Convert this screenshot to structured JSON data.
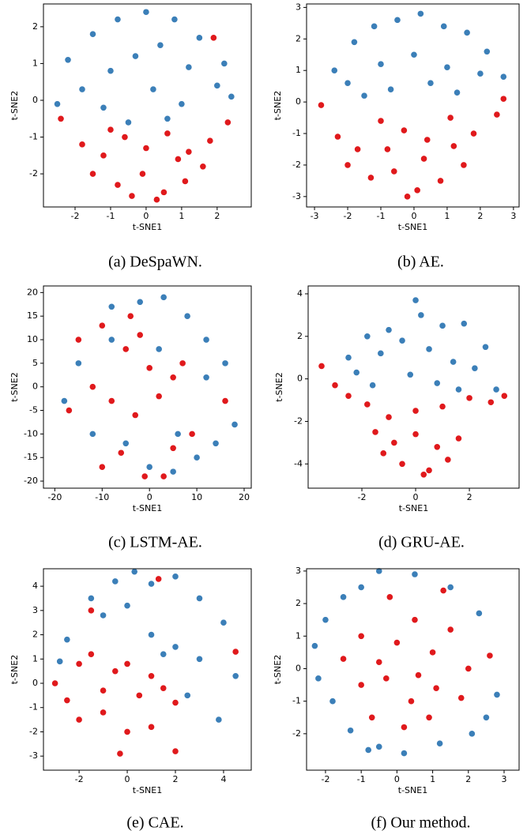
{
  "chart_data": [
    {
      "type": "scatter",
      "caption": "(a) DeSpaWN.",
      "xlabel": "t-SNE1",
      "ylabel": "t-SNE2",
      "xlim": [
        -2.89,
        2.96
      ],
      "ylim": [
        -2.9,
        2.62
      ],
      "xticks": [
        -2,
        -1,
        0,
        1,
        2
      ],
      "yticks": [
        -2,
        -1,
        0,
        1,
        2
      ],
      "series": [
        {
          "color": "#3b7fb8",
          "x": [
            -2.2,
            -1.5,
            -0.8,
            0,
            0.8,
            1.5,
            2.2,
            -1.8,
            -1,
            -0.3,
            0.4,
            1.2,
            2,
            -2.5,
            -1.2,
            0.2,
            1.0,
            2.4,
            -0.5,
            0.6
          ],
          "y": [
            1.1,
            1.8,
            2.2,
            2.4,
            2.2,
            1.7,
            1.0,
            0.3,
            0.8,
            1.2,
            1.5,
            0.9,
            0.4,
            -0.1,
            -0.2,
            0.3,
            -0.1,
            0.1,
            -0.6,
            -0.5
          ]
        },
        {
          "color": "#e0191c",
          "x": [
            -2.4,
            -1.8,
            -1.2,
            -0.6,
            0,
            0.6,
            1.2,
            1.8,
            2.3,
            -1.5,
            -0.8,
            -0.1,
            0.5,
            1.1,
            1.6,
            -0.4,
            0.3,
            0.9,
            -1.0,
            1.9
          ],
          "y": [
            -0.5,
            -1.2,
            -1.5,
            -1.0,
            -1.3,
            -0.9,
            -1.4,
            -1.1,
            -0.6,
            -2.0,
            -2.3,
            -2.0,
            -2.5,
            -2.2,
            -1.8,
            -2.6,
            -2.7,
            -1.6,
            -0.8,
            1.7
          ]
        }
      ]
    },
    {
      "type": "scatter",
      "caption": "(b) AE.",
      "xlabel": "t-SNE1",
      "ylabel": "t-SNE2",
      "xlim": [
        -3.24,
        3.17
      ],
      "ylim": [
        -3.33,
        3.11
      ],
      "xticks": [
        -3,
        -2,
        -1,
        0,
        1,
        2,
        3
      ],
      "yticks": [
        -3,
        -2,
        -1,
        0,
        1,
        2,
        3
      ],
      "series": [
        {
          "color": "#3b7fb8",
          "x": [
            -2.4,
            -1.8,
            -1.2,
            -0.5,
            0.2,
            0.9,
            1.6,
            2.2,
            2.7,
            -2,
            -1,
            0,
            1,
            2,
            -0.7,
            0.5,
            1.3,
            -1.5
          ],
          "y": [
            1.0,
            1.9,
            2.4,
            2.6,
            2.8,
            2.4,
            2.2,
            1.6,
            0.8,
            0.6,
            1.2,
            1.5,
            1.1,
            0.9,
            0.4,
            0.6,
            0.3,
            0.2
          ]
        },
        {
          "color": "#e0191c",
          "x": [
            -2.8,
            -2.3,
            -1.7,
            -1,
            -0.3,
            0.4,
            1.1,
            1.8,
            2.5,
            -2,
            -1.3,
            -0.6,
            0.1,
            0.8,
            1.5,
            -0.8,
            0.3,
            1.2,
            -0.2,
            2.7
          ],
          "y": [
            -0.1,
            -1.1,
            -1.5,
            -0.6,
            -0.9,
            -1.2,
            -0.5,
            -1.0,
            -0.4,
            -2.0,
            -2.4,
            -2.2,
            -2.8,
            -2.5,
            -2.0,
            -1.5,
            -1.8,
            -1.4,
            -3.0,
            0.1
          ]
        }
      ]
    },
    {
      "type": "scatter",
      "caption": "(c) LSTM-AE.",
      "xlabel": "t-SNE1",
      "ylabel": "t-SNE2",
      "xlim": [
        -22.4,
        21.5
      ],
      "ylim": [
        -21.5,
        21.4
      ],
      "xticks": [
        -20,
        -10,
        0,
        10,
        20
      ],
      "yticks": [
        -20,
        -15,
        -10,
        -5,
        0,
        5,
        10,
        15,
        20
      ],
      "series": [
        {
          "color": "#3b7fb8",
          "x": [
            -8,
            -2,
            3,
            8,
            12,
            16,
            18,
            14,
            10,
            6,
            -15,
            -18,
            -12,
            -5,
            0,
            5,
            -8,
            2,
            12
          ],
          "y": [
            17,
            18,
            19,
            15,
            10,
            5,
            -8,
            -12,
            -15,
            -10,
            5,
            -3,
            -10,
            -12,
            -17,
            -18,
            10,
            8,
            2
          ]
        },
        {
          "color": "#e0191c",
          "x": [
            -15,
            -10,
            -5,
            0,
            5,
            -12,
            -8,
            -3,
            2,
            7,
            -17,
            -6,
            -1,
            3,
            -10,
            5,
            -4,
            16,
            -2,
            9
          ],
          "y": [
            10,
            13,
            8,
            4,
            2,
            0,
            -3,
            -6,
            -2,
            5,
            -5,
            -14,
            -19,
            -19,
            -17,
            -13,
            15,
            -3,
            11,
            -10
          ]
        }
      ]
    },
    {
      "type": "scatter",
      "caption": "(d) GRU-AE.",
      "xlabel": "t-SNE1",
      "ylabel": "t-SNE2",
      "xlim": [
        -4.0,
        3.85
      ],
      "ylim": [
        -5.14,
        4.37
      ],
      "xticks": [
        -2,
        0,
        2
      ],
      "yticks": [
        -4,
        -2,
        0,
        2,
        4
      ],
      "series": [
        {
          "color": "#3b7fb8",
          "x": [
            -2.5,
            -1.8,
            -1,
            0,
            1,
            1.8,
            2.6,
            -2.2,
            -1.3,
            -0.5,
            0.5,
            1.4,
            2.2,
            -0.2,
            0.8,
            1.6,
            -1.6,
            0.2,
            3
          ],
          "y": [
            1.0,
            2.0,
            2.3,
            3.7,
            2.5,
            2.6,
            1.5,
            0.3,
            1.2,
            1.8,
            1.4,
            0.8,
            0.5,
            0.2,
            -0.2,
            -0.5,
            -0.3,
            3.0,
            -0.5
          ]
        },
        {
          "color": "#e0191c",
          "x": [
            -3.5,
            -3,
            -2.5,
            -1.8,
            -1,
            0,
            1,
            2,
            2.8,
            3.3,
            -1.5,
            -0.8,
            0,
            0.8,
            1.6,
            -0.5,
            0.3,
            1.2,
            -1.2,
            0.5
          ],
          "y": [
            0.6,
            -0.3,
            -0.8,
            -1.2,
            -1.8,
            -1.5,
            -1.3,
            -0.9,
            -1.1,
            -0.8,
            -2.5,
            -3,
            -2.6,
            -3.2,
            -2.8,
            -4,
            -4.5,
            -3.8,
            -3.5,
            -4.3
          ]
        }
      ]
    },
    {
      "type": "scatter",
      "caption": "(e) CAE.",
      "xlabel": "t-SNE1",
      "ylabel": "t-SNE2",
      "xlim": [
        -3.48,
        5.15
      ],
      "ylim": [
        -3.58,
        4.72
      ],
      "xticks": [
        -2,
        0,
        2,
        4
      ],
      "yticks": [
        -3,
        -2,
        -1,
        0,
        1,
        2,
        3,
        4
      ],
      "series": [
        {
          "color": "#3b7fb8",
          "x": [
            -2.5,
            -1.5,
            -0.5,
            0.3,
            1,
            2,
            3,
            4,
            -1,
            0,
            1,
            2,
            3,
            4.5,
            2.5,
            3.8,
            1.5,
            -2.8
          ],
          "y": [
            1.8,
            3.5,
            4.2,
            4.6,
            4.1,
            4.4,
            3.5,
            2.5,
            2.8,
            3.2,
            2,
            1.5,
            1,
            0.3,
            -0.5,
            -1.5,
            1.2,
            0.9
          ]
        },
        {
          "color": "#e0191c",
          "x": [
            -3,
            -2.5,
            -2,
            -1.5,
            -1,
            -0.5,
            0,
            0.5,
            1,
            1.5,
            2,
            -2,
            -1,
            0,
            1,
            2,
            -1.5,
            1.3,
            4.5,
            -0.3
          ],
          "y": [
            0,
            -0.7,
            0.8,
            1.2,
            -0.3,
            0.5,
            0.8,
            -0.5,
            0.3,
            -0.2,
            -0.8,
            -1.5,
            -1.2,
            -2,
            -1.8,
            -2.8,
            3,
            4.3,
            1.3,
            -2.9
          ]
        }
      ]
    },
    {
      "type": "scatter",
      "caption": "(f) Our method.",
      "xlabel": "t-SNE1",
      "ylabel": "t-SNE2",
      "xlim": [
        -2.53,
        3.42
      ],
      "ylim": [
        -3.12,
        3.07
      ],
      "xticks": [
        -2,
        -1,
        0,
        1,
        2,
        3
      ],
      "yticks": [
        -2,
        -1,
        0,
        1,
        2,
        3
      ],
      "series": [
        {
          "color": "#3b7fb8",
          "x": [
            -2.3,
            -2,
            -1.5,
            -1,
            -0.5,
            0.5,
            1.5,
            2.3,
            2.8,
            2.5,
            -2.2,
            -1.8,
            -1.3,
            -0.5,
            0.2,
            2.1,
            1.2,
            -0.8
          ],
          "y": [
            0.7,
            1.5,
            2.2,
            2.5,
            3.0,
            2.9,
            2.5,
            1.7,
            -0.8,
            -1.5,
            -0.3,
            -1.0,
            -1.9,
            -2.4,
            -2.6,
            -2.0,
            -2.3,
            -2.5
          ]
        },
        {
          "color": "#e0191c",
          "x": [
            -1.5,
            -1,
            -0.5,
            0,
            0.5,
            1,
            1.5,
            2,
            -1,
            -0.3,
            0.4,
            1.1,
            1.8,
            -0.7,
            0.2,
            0.9,
            -0.2,
            1.3,
            2.6,
            0.6
          ],
          "y": [
            0.3,
            1,
            0.2,
            0.8,
            1.5,
            0.5,
            1.2,
            0,
            -0.5,
            -0.3,
            -1,
            -0.6,
            -0.9,
            -1.5,
            -1.8,
            -1.5,
            2.2,
            2.4,
            0.4,
            -0.2
          ]
        }
      ]
    }
  ]
}
